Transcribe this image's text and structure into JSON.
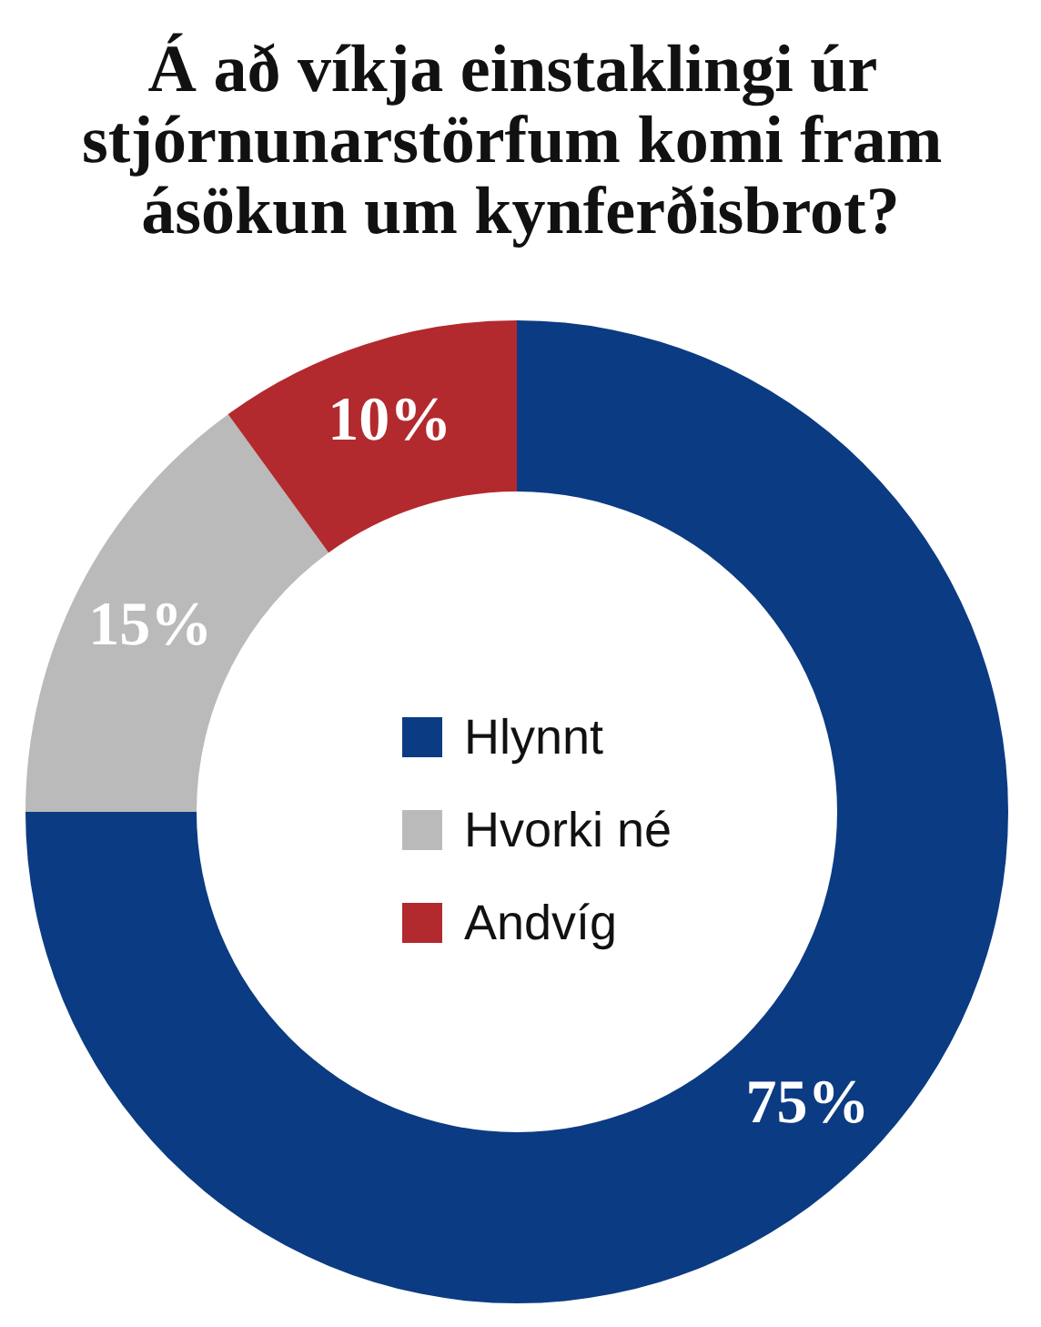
{
  "chart_data": {
    "type": "donut",
    "title": "Á að víkja einstaklingi úr stjórnunarstörfum komi fram ásökun um kynferðisbrot?",
    "categories": [
      "Hlynnt",
      "Hvorki né",
      "Andvíg"
    ],
    "values": [
      75,
      15,
      10
    ],
    "colors": [
      "#0b3b82",
      "#bababa",
      "#b22a2e"
    ],
    "value_labels": [
      "75%",
      "15%",
      "10%"
    ],
    "legend": "center"
  }
}
